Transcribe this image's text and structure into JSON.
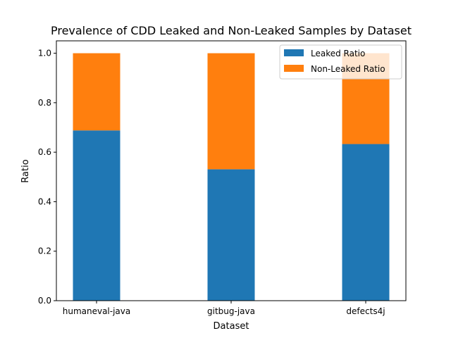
{
  "chart_data": {
    "type": "bar",
    "stacked": true,
    "title": "Prevalence of CDD Leaked and Non-Leaked Samples by Dataset",
    "xlabel": "Dataset",
    "ylabel": "Ratio",
    "ylim": [
      0,
      1.05
    ],
    "yticks": [
      "0.0",
      "0.2",
      "0.4",
      "0.6",
      "0.8",
      "1.0"
    ],
    "categories": [
      "humaneval-java",
      "gitbug-java",
      "defects4j"
    ],
    "series": [
      {
        "name": "Leaked Ratio",
        "color": "#1f77b4",
        "values": [
          0.688,
          0.531,
          0.633
        ]
      },
      {
        "name": "Non-Leaked Ratio",
        "color": "#ff7f0e",
        "values": [
          0.312,
          0.469,
          0.367
        ]
      }
    ],
    "legend": "top-right",
    "grid": false
  }
}
